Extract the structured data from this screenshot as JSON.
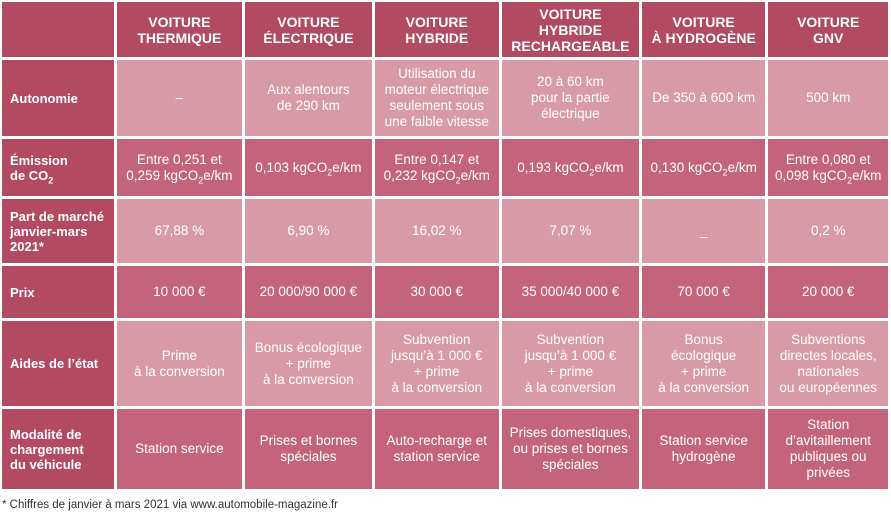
{
  "columns": [
    "VOITURE\nTHERMIQUE",
    "VOITURE\nÉLECTRIQUE",
    "VOITURE\nHYBRIDE",
    "VOITURE HYBRIDE\nRECHARGEABLE",
    "VOITURE\nÀ HYDROGÈNE",
    "VOITURE\nGNV"
  ],
  "rows": [
    {
      "label": "Autonomie",
      "cells": [
        "–",
        "Aux alentours\nde 290 km",
        "Utilisation du\nmoteur électrique\nseulement sous\nune faible vitesse",
        "20 à 60 km\npour la partie\nélectrique",
        "De 350 à 600 km",
        "500 km"
      ]
    },
    {
      "label": "Émission\nde CO₂",
      "cells": [
        "Entre 0,251 et\n0,259 kgCO₂e/km",
        "0,103 kgCO₂e/km",
        "Entre 0,147 et\n0,232 kgCO₂e/km",
        "0,193 kgCO₂e/km",
        "0,130 kgCO₂e/km",
        "Entre 0,080 et\n0,098 kgCO₂e/km"
      ]
    },
    {
      "label": "Part de marché\njanvier-mars\n2021*",
      "cells": [
        "67,88 %",
        "6,90 %",
        "16,02 %",
        "7,07 %",
        "_",
        "0,2 %"
      ]
    },
    {
      "label": "Prix",
      "cells": [
        "10 000 €",
        "20 000/90 000 €",
        "30 000 €",
        "35 000/40 000 €",
        "70 000 €",
        "20 000 €"
      ]
    },
    {
      "label": "Aides de l’état",
      "cells": [
        "Prime\nà la conversion",
        "Bonus écologique\n+ prime\nà la conversion",
        "Subvention\njusqu’à 1 000 €\n+ prime\nà la conversion",
        "Subvention\njusqu’à 1 000 €\n+ prime\nà la conversion",
        "Bonus\nécologique\n+ prime\nà la conversion",
        "Subventions\ndirectes locales,\nnationales\nou européennes"
      ]
    },
    {
      "label": "Modalité de\nchargement\ndu véhicule",
      "cells": [
        "Station service",
        "Prises et bornes\nspéciales",
        "Auto-recharge et\nstation service",
        "Prises domestiques,\nou prises et bornes\nspéciales",
        "Station service\nhydrogène",
        "Station\nd’avitaillement\npubliques ou\nprivées"
      ]
    }
  ],
  "footnote": "* Chiffres de janvier à mars 2021 via www.automobile-magazine.fr",
  "colors": {
    "header_bg": "#b24a62",
    "row_light": "#d99aa7",
    "row_dark": "#c4647c",
    "text": "#ffffff"
  }
}
